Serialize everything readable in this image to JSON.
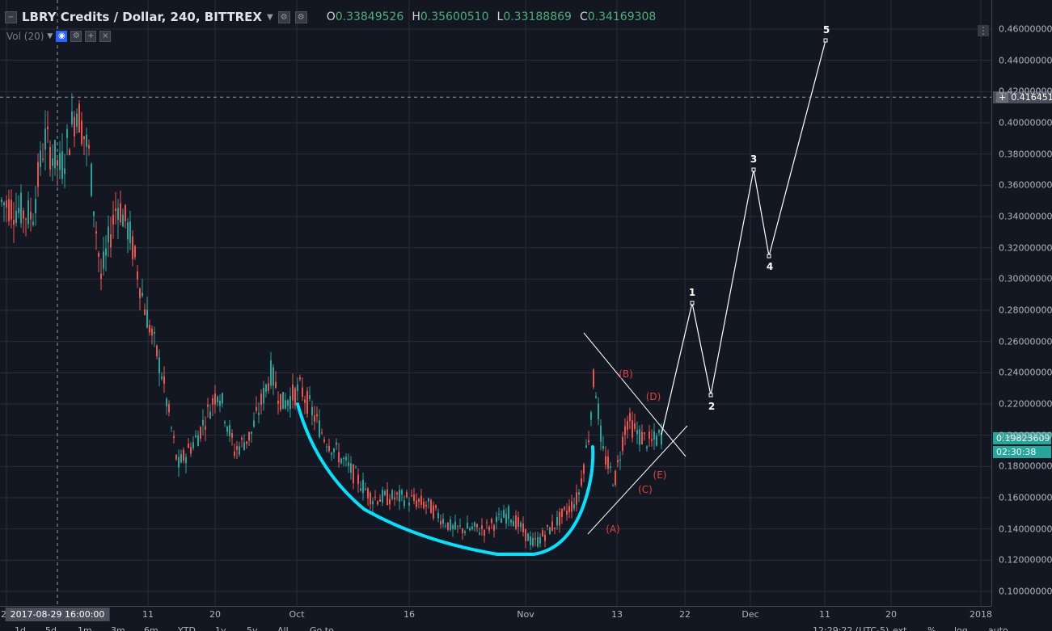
{
  "header": {
    "title": "LBRY Credits / Dollar, 240, BITTREX",
    "ohlc": [
      {
        "key": "O",
        "value": "0.33849526"
      },
      {
        "key": "H",
        "value": "0.35600510"
      },
      {
        "key": "L",
        "value": "0.33188869"
      },
      {
        "key": "C",
        "value": "0.34169308"
      }
    ]
  },
  "volume_indicator": {
    "label": "Vol (20)"
  },
  "price_axis": {
    "labels": [
      "0.46000000",
      "0.44000000",
      "0.42000000",
      "0.40000000",
      "0.38000000",
      "0.36000000",
      "0.34000000",
      "0.32000000",
      "0.30000000",
      "0.28000000",
      "0.26000000",
      "0.24000000",
      "0.22000000",
      "0.20000000",
      "0.18000000",
      "0.16000000",
      "0.14000000",
      "0.12000000",
      "0.10000000"
    ],
    "current_price": "0.19823609",
    "countdown": "02:30:38",
    "crosshair_price": "0.41645162"
  },
  "time_axis": {
    "labels": [
      "23",
      "11",
      "20",
      "Oct",
      "16",
      "Nov",
      "13",
      "22",
      "Dec",
      "11",
      "20",
      "2018"
    ],
    "crosshair_time": "2017-08-29 16:00:00"
  },
  "bottom_toolbar": {
    "ranges": [
      "1d",
      "5d",
      "1m",
      "3m",
      "6m",
      "YTD",
      "1y",
      "5y",
      "All",
      "Go to..."
    ],
    "time": "12:29:22 (UTC-5)",
    "options": [
      "ext",
      "%",
      "log",
      "auto"
    ]
  },
  "wave_labels": {
    "impulse": [
      "1",
      "2",
      "3",
      "4",
      "5"
    ],
    "correction": [
      "(A)",
      "(B)",
      "(C)",
      "(D)",
      "(E)"
    ]
  },
  "colors": {
    "background": "#131722",
    "up": "#26a69a",
    "down": "#ef5350",
    "cup": "#00e5ff",
    "wave_label": "#ffffff",
    "abc_label": "#e04040"
  }
}
